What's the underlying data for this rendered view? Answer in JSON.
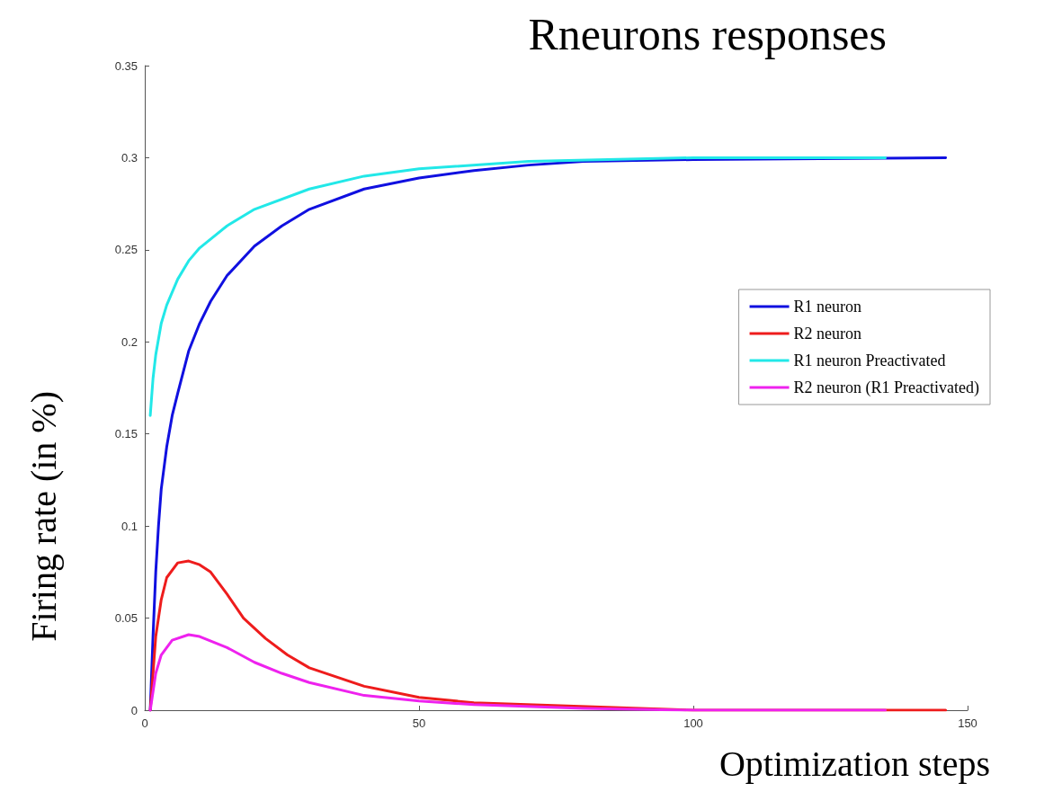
{
  "chart_data": {
    "type": "line",
    "title": "Rneurons responses",
    "xlabel": "Optimization steps",
    "ylabel": "Firing rate (in %)",
    "xlim": [
      0,
      150
    ],
    "xticks": [
      0,
      50,
      100,
      150
    ],
    "ylim": [
      0,
      0.35
    ],
    "yticks": [
      0,
      0.05,
      0.1,
      0.15,
      0.2,
      0.25,
      0.3,
      0.35
    ],
    "grid": false,
    "legend": "right",
    "marker": "none",
    "line_style": "solid",
    "series": [
      {
        "name": "R1 neuron",
        "color": "#1010e0",
        "x": [
          1,
          1.5,
          2,
          2.5,
          3,
          4,
          5,
          6,
          8,
          10,
          12,
          15,
          20,
          25,
          30,
          40,
          50,
          60,
          70,
          80,
          100,
          146
        ],
        "values": [
          0,
          0.04,
          0.075,
          0.1,
          0.12,
          0.143,
          0.16,
          0.172,
          0.195,
          0.21,
          0.222,
          0.236,
          0.252,
          0.263,
          0.272,
          0.283,
          0.289,
          0.293,
          0.296,
          0.298,
          0.299,
          0.3
        ]
      },
      {
        "name": "R2 neuron",
        "color": "#ee1c1c",
        "x": [
          1,
          2,
          3,
          4,
          6,
          8,
          10,
          12,
          15,
          18,
          22,
          26,
          30,
          40,
          50,
          60,
          100,
          146
        ],
        "values": [
          0,
          0.04,
          0.06,
          0.072,
          0.08,
          0.081,
          0.079,
          0.075,
          0.063,
          0.05,
          0.039,
          0.03,
          0.023,
          0.013,
          0.007,
          0.004,
          0,
          0
        ]
      },
      {
        "name": "R1 neuron Preactivated",
        "color": "#22e8e8",
        "x": [
          1,
          1.5,
          2,
          3,
          4,
          6,
          8,
          10,
          15,
          20,
          30,
          40,
          50,
          70,
          100,
          135
        ],
        "values": [
          0.16,
          0.18,
          0.193,
          0.21,
          0.22,
          0.234,
          0.244,
          0.251,
          0.263,
          0.272,
          0.283,
          0.29,
          0.294,
          0.298,
          0.3,
          0.3
        ]
      },
      {
        "name": "R2 neuron (R1 Preactivated)",
        "color": "#ee22ee",
        "x": [
          1,
          2,
          3,
          5,
          8,
          10,
          15,
          20,
          25,
          30,
          40,
          50,
          60,
          80,
          100,
          135
        ],
        "values": [
          0,
          0.02,
          0.03,
          0.038,
          0.041,
          0.04,
          0.034,
          0.026,
          0.02,
          0.015,
          0.008,
          0.005,
          0.003,
          0.001,
          0,
          0
        ]
      }
    ]
  }
}
